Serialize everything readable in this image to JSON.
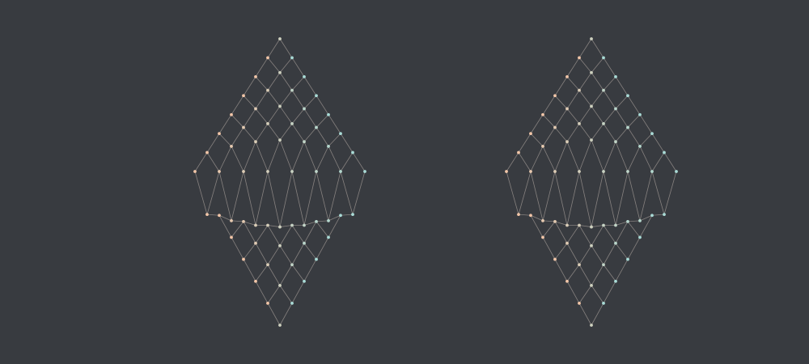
{
  "diagram": {
    "type": "lattice-network",
    "colors": {
      "background": "#383b40",
      "edge": "#8f8a86",
      "node_warm": "#f2c6a8",
      "node_cool": "#a9dbd6"
    },
    "figures": [
      {
        "id": "left-lattice",
        "rows_per_half": 7
      },
      {
        "id": "right-lattice",
        "rows_per_half": 7
      }
    ]
  }
}
